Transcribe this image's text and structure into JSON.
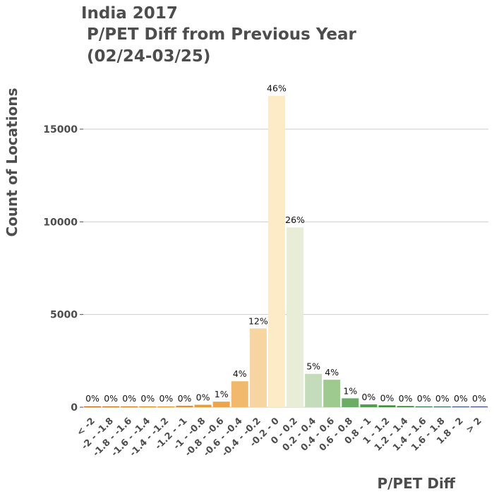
{
  "chart_data": {
    "type": "bar",
    "title": [
      "India 2017",
      " P/PET Diff from Previous Year",
      " (02/24-03/25)"
    ],
    "xlabel": "P/PET Diff",
    "ylabel": "Count of Locations",
    "ylim": [
      0,
      17000
    ],
    "yticks": [
      0,
      5000,
      10000,
      15000
    ],
    "ytick_labels": [
      "0",
      "5000",
      "10000",
      "15000"
    ],
    "grid": true,
    "categories": [
      "< -2",
      "-2 - -1.8",
      "-1.8 - -1.6",
      "-1.6 - -1.4",
      "-1.4 - -1.2",
      "-1.2 - -1",
      "-1 - -0.8",
      "-0.8 - -0.6",
      "-0.6 - -0.4",
      "-0.4 - -0.2",
      "-0.2 - 0",
      "0 - 0.2",
      "0.2 - 0.4",
      "0.4 - 0.6",
      "0.6 - 0.8",
      "0.8 - 1",
      "1 - 1.2",
      "1.2 - 1.4",
      "1.4 - 1.6",
      "1.6 - 1.8",
      "1.8 - 2",
      "> 2"
    ],
    "values": [
      10,
      10,
      10,
      10,
      15,
      80,
      130,
      300,
      1400,
      4250,
      16800,
      9700,
      1800,
      1480,
      480,
      150,
      100,
      60,
      40,
      30,
      20,
      5
    ],
    "bar_labels": [
      "0%",
      "0%",
      "0%",
      "0%",
      "0%",
      "0%",
      "0%",
      "1%",
      "4%",
      "12%",
      "46%",
      "26%",
      "5%",
      "4%",
      "1%",
      "0%",
      "0%",
      "0%",
      "0%",
      "0%",
      "0%",
      "0%"
    ],
    "colors": [
      "#b35806",
      "#c2650a",
      "#d07310",
      "#d98216",
      "#de8f21",
      "#e09030",
      "#e59e3a",
      "#eba54f",
      "#f2b96e",
      "#f7d5a1",
      "#fdebc8",
      "#e8edd8",
      "#c5dcba",
      "#9ec98f",
      "#6bac66",
      "#529e4a",
      "#3f8f3a",
      "#2e7d32",
      "#2a6e3b",
      "#2f5d57",
      "#2d4b6f",
      "#2c3e7d"
    ]
  }
}
